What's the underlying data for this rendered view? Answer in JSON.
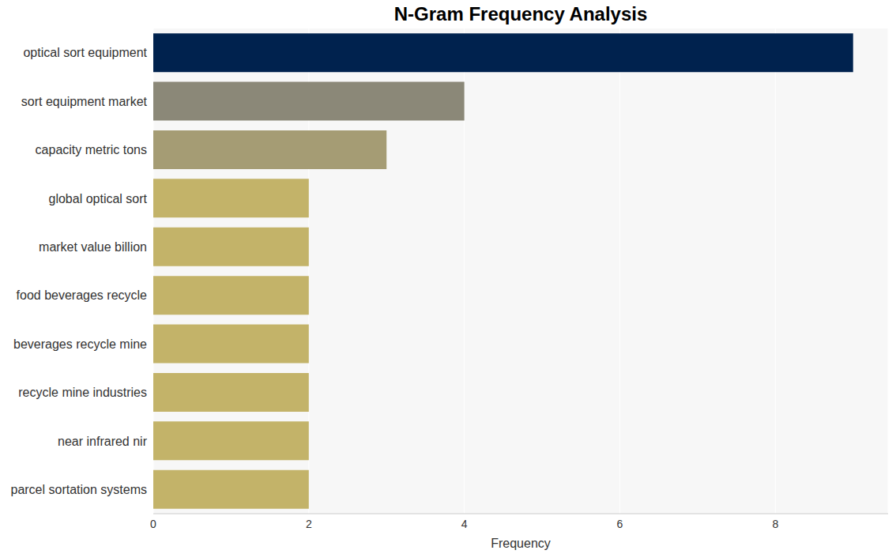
{
  "chart_data": {
    "type": "bar",
    "title": "N-Gram Frequency Analysis",
    "orientation": "horizontal",
    "x_label": "Frequency",
    "categories": [
      "optical sort equipment",
      "sort equipment market",
      "capacity metric tons",
      "global optical sort",
      "market value billion",
      "food beverages recycle",
      "beverages recycle mine",
      "recycle mine industries",
      "near infrared nir",
      "parcel sortation systems"
    ],
    "values": [
      9,
      4,
      3,
      2,
      2,
      2,
      2,
      2,
      2,
      2
    ],
    "colors": [
      "#00224e",
      "#8b8878",
      "#a59c74",
      "#c3b369",
      "#c3b369",
      "#c3b369",
      "#c3b369",
      "#c3b369",
      "#c3b369",
      "#c3b369"
    ],
    "xlim": [
      0,
      9.45
    ],
    "xticks": [
      0,
      2,
      4,
      6,
      8
    ],
    "grid": true
  }
}
